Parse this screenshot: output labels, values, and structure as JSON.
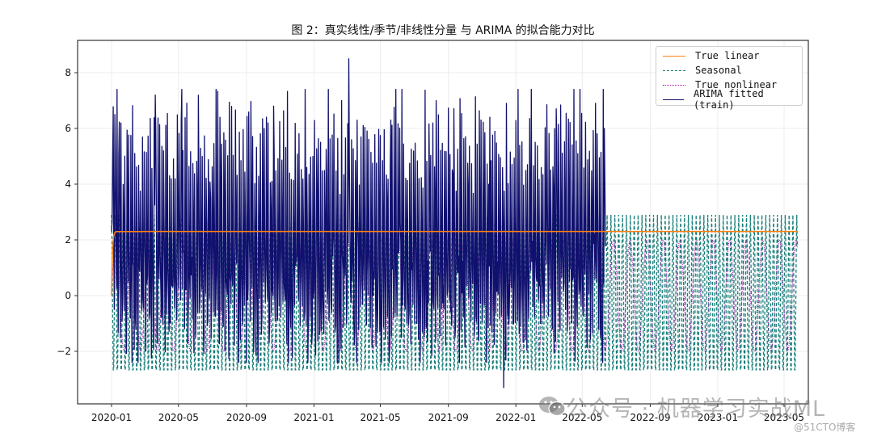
{
  "title": "图 2：真实线性/季节/非线性分量 与 ARIMA 的拟合能力对比",
  "legend": {
    "items": [
      {
        "label": "True linear",
        "color": "#ff7f0e",
        "style": "solid"
      },
      {
        "label": "Seasonal",
        "color": "#1a7f7a",
        "style": "dashed"
      },
      {
        "label": "True nonlinear",
        "color": "#b300b3",
        "style": "dotted"
      },
      {
        "label": "ARIMA fitted (train)",
        "color": "#10106e",
        "style": "solid"
      }
    ]
  },
  "watermark": {
    "main": "公众号 · 机器学习实战ML",
    "sub": "@51CTO博客"
  },
  "colors": {
    "linear": "#ff7f0e",
    "seasonal": "#1a7f7a",
    "nonlinear": "#b300b3",
    "arima": "#10106e",
    "grid": "#ececec",
    "axis": "#333333"
  },
  "chart_data": {
    "type": "line",
    "title": "图 2：真实线性/季节/非线性分量 与 ARIMA 的拟合能力对比",
    "xlabel": "",
    "ylabel": "",
    "x_range": [
      "2020-01-01",
      "2023-05-25"
    ],
    "ylim": [
      -3.9,
      9.1
    ],
    "grid": true,
    "legend_position": "upper right",
    "x_ticks": [
      "2020-01",
      "2020-05",
      "2020-09",
      "2021-01",
      "2021-05",
      "2021-09",
      "2022-01",
      "2022-05",
      "2022-09",
      "2023-01",
      "2023-05"
    ],
    "y_ticks": [
      -2,
      0,
      2,
      4,
      6,
      8
    ],
    "frequency": "daily",
    "train_end": "2022-06-12",
    "series": [
      {
        "name": "True linear",
        "style": "solid",
        "description": "ramps from 0 to ~2.3 in first days, then constant",
        "start_value": 0.0,
        "plateau_value": 2.3,
        "range": [
          "2020-01-01",
          "2023-05-25"
        ]
      },
      {
        "name": "Seasonal",
        "style": "dashed",
        "description": "weekly periodic component",
        "period_days": 7,
        "max": 2.9,
        "min": -2.95,
        "range": [
          "2020-01-01",
          "2023-05-25"
        ]
      },
      {
        "name": "True nonlinear",
        "style": "dotted",
        "description": "sinusoidal component",
        "amplitude": 2.0,
        "period_days": 30,
        "range": [
          "2020-01-01",
          "2023-05-25"
        ]
      },
      {
        "name": "ARIMA fitted (train)",
        "style": "solid",
        "description": "in-sample fit on train period only, weekly spikes",
        "range": [
          "2020-01-01",
          "2022-06-12"
        ],
        "max": 8.5,
        "max_date": "2021-03-05",
        "min": -3.3,
        "min_date": "2021-12-10",
        "typical_peak_range": [
          4.0,
          7.3
        ],
        "typical_trough_range": [
          -2.2,
          0.5
        ],
        "sampled_peaks": [
          {
            "date": "2020-01-03",
            "value": 4.9
          },
          {
            "date": "2020-01-07",
            "value": 6.5
          },
          {
            "date": "2020-01-14",
            "value": 5.0
          },
          {
            "date": "2020-03-20",
            "value": 7.2
          },
          {
            "date": "2020-05-07",
            "value": 7.4
          },
          {
            "date": "2020-07-15",
            "value": 6.4
          },
          {
            "date": "2020-10-20",
            "value": 6.8
          },
          {
            "date": "2021-02-20",
            "value": 7.0
          },
          {
            "date": "2021-03-05",
            "value": 8.5
          },
          {
            "date": "2021-05-20",
            "value": 6.3
          },
          {
            "date": "2021-08-10",
            "value": 7.0
          },
          {
            "date": "2021-11-15",
            "value": 6.4
          },
          {
            "date": "2022-03-15",
            "value": 6.7
          },
          {
            "date": "2022-05-25",
            "value": 6.9
          },
          {
            "date": "2022-06-10",
            "value": 6.0
          }
        ]
      }
    ]
  }
}
